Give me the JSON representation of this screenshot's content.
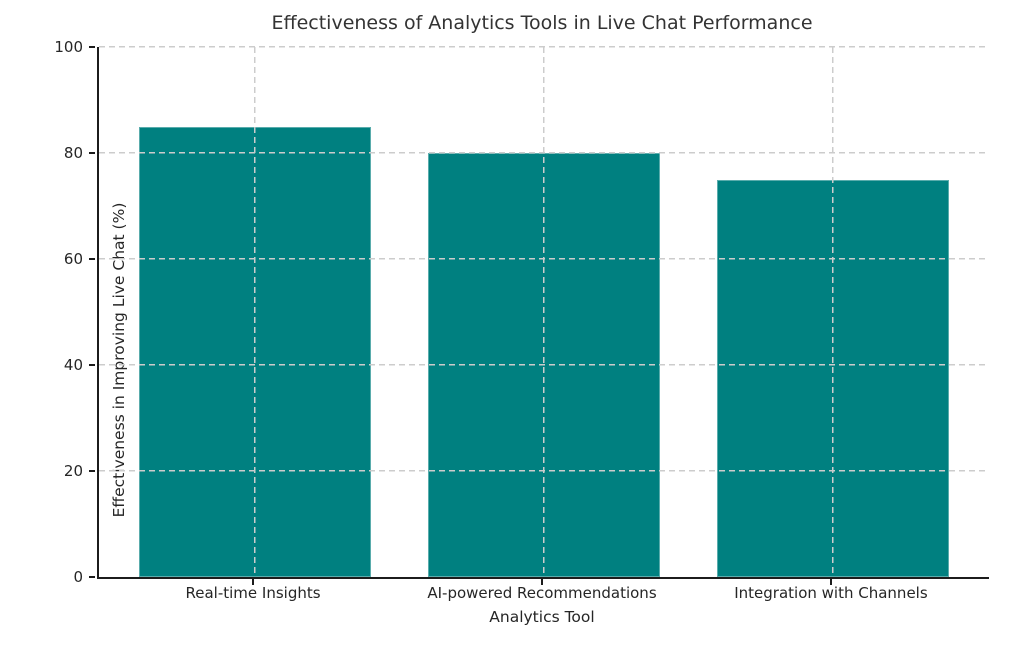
{
  "chart_data": {
    "type": "bar",
    "title": "Effectiveness of Analytics Tools in Live Chat Performance",
    "xlabel": "Analytics Tool",
    "ylabel": "Effectiveness in Improving Live Chat (%)",
    "categories": [
      "Real-time Insights",
      "AI-powered Recommendations",
      "Integration with Channels"
    ],
    "values": [
      85,
      80,
      75
    ],
    "ylim": [
      0,
      100
    ],
    "yticks": [
      0,
      20,
      40,
      60,
      80,
      100
    ],
    "bar_color": "#008080",
    "grid": "dashed, both axes, drawn above bars",
    "grid_color": "#cccccc",
    "spine_color": "#1c1c1c",
    "legend": "none"
  }
}
